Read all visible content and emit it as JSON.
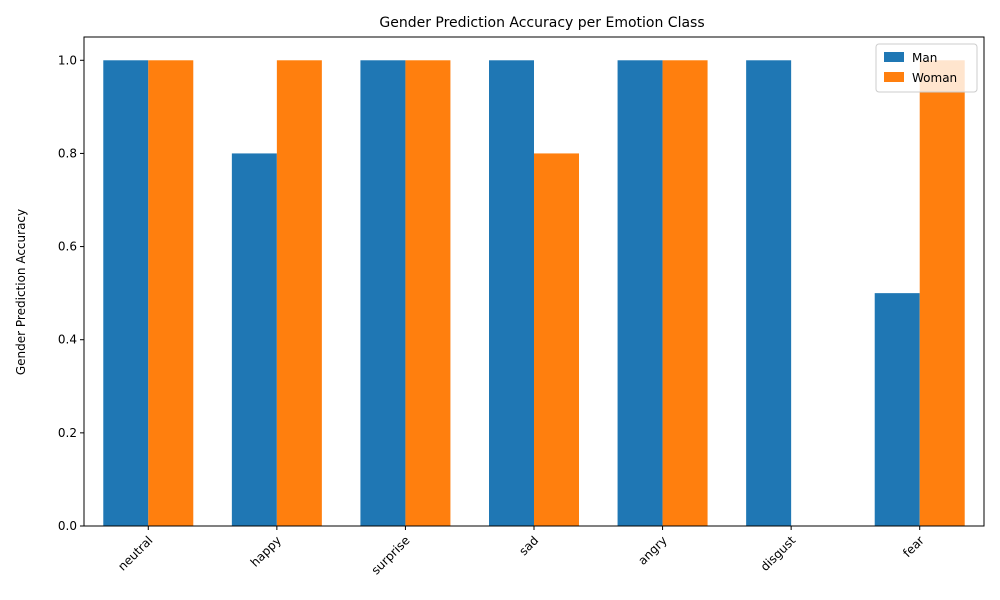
{
  "chart_data": {
    "type": "bar",
    "title": "Gender Prediction Accuracy per Emotion Class",
    "xlabel": "",
    "ylabel": "Gender Prediction Accuracy",
    "categories": [
      "neutral",
      "happy",
      "surprise",
      "sad",
      "angry",
      "disgust",
      "fear"
    ],
    "series": [
      {
        "name": "Man",
        "color": "#1f77b4",
        "values": [
          1.0,
          0.8,
          1.0,
          1.0,
          1.0,
          1.0,
          0.5
        ]
      },
      {
        "name": "Woman",
        "color": "#ff7f0e",
        "values": [
          1.0,
          1.0,
          1.0,
          0.8,
          1.0,
          0.0,
          1.0
        ]
      }
    ],
    "ylim": [
      0,
      1.05
    ],
    "yticks": [
      "0.0",
      "0.2",
      "0.4",
      "0.6",
      "0.8",
      "1.0"
    ],
    "legend": "top-right",
    "grid": false
  }
}
